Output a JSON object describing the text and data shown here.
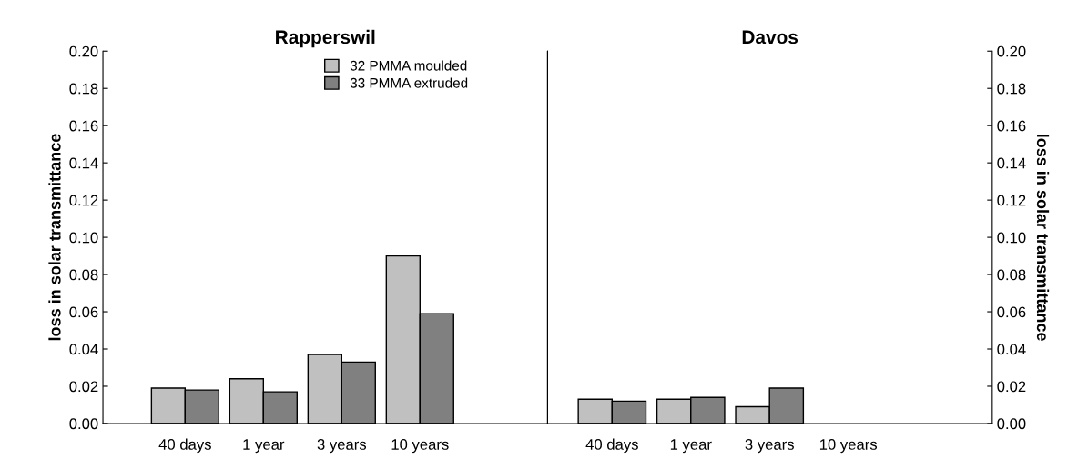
{
  "chart_data": [
    {
      "type": "bar",
      "title": "Rapperswil",
      "ylabel": "loss in solar transmittance",
      "categories": [
        "40 days",
        "1 year",
        "3 years",
        "10 years"
      ],
      "series": [
        {
          "name": "32 PMMA moulded",
          "color": "#c0c0c0",
          "values": [
            0.019,
            0.024,
            0.037,
            0.09
          ]
        },
        {
          "name": "33 PMMA extruded",
          "color": "#808080",
          "values": [
            0.018,
            0.017,
            0.033,
            0.059
          ]
        }
      ],
      "ylim": [
        0,
        0.2
      ],
      "yticks": [
        {
          "value": 0,
          "label": "0.00"
        },
        {
          "value": 0.02,
          "label": "0.02"
        },
        {
          "value": 0.04,
          "label": "0.04"
        },
        {
          "value": 0.06,
          "label": "0.06"
        },
        {
          "value": 0.08,
          "label": "0.08"
        },
        {
          "value": 0.1,
          "label": "0.10"
        },
        {
          "value": 0.12,
          "label": "0.12"
        },
        {
          "value": 0.14,
          "label": "0.14"
        },
        {
          "value": 0.16,
          "label": "0.16"
        },
        {
          "value": 0.18,
          "label": "0.18"
        },
        {
          "value": 0.2,
          "label": "0.20"
        }
      ],
      "legend": "top right",
      "grid": false
    },
    {
      "type": "bar",
      "title": "Davos",
      "ylabel": "loss in solar transmittance",
      "categories": [
        "40 days",
        "1 year",
        "3 years",
        "10 years"
      ],
      "series": [
        {
          "color": "#c0c0c0",
          "values": [
            0.013,
            0.013,
            0.009,
            null
          ]
        },
        {
          "color": "#808080",
          "values": [
            0.012,
            0.014,
            0.019,
            null
          ]
        }
      ],
      "ylim": [
        0,
        0.2
      ],
      "yticks": [
        {
          "value": 0,
          "label": "0.00"
        },
        {
          "value": 0.02,
          "label": "0.02"
        },
        {
          "value": 0.04,
          "label": "0.04"
        },
        {
          "value": 0.06,
          "label": "0.06"
        },
        {
          "value": 0.08,
          "label": "0.08"
        },
        {
          "value": 0.1,
          "label": "0.10"
        },
        {
          "value": 0.12,
          "label": "0.12"
        },
        {
          "value": 0.14,
          "label": "0.14"
        },
        {
          "value": 0.16,
          "label": "0.16"
        },
        {
          "value": 0.18,
          "label": "0.18"
        },
        {
          "value": 0.2,
          "label": "0.20"
        }
      ],
      "grid": false
    }
  ]
}
